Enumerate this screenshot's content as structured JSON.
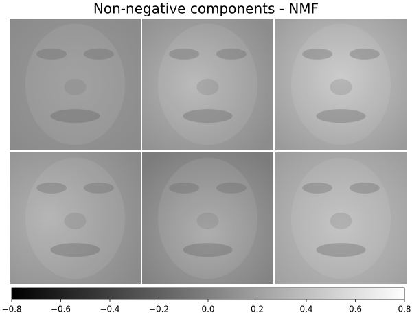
{
  "chart_data": {
    "type": "image-grid",
    "title": "Non-negative components - NMF",
    "colormap": "gray",
    "xlim": [
      -0.8,
      0.8
    ],
    "xticks": [
      {
        "value": -0.8,
        "label": "−0.8"
      },
      {
        "value": -0.6,
        "label": "−0.6"
      },
      {
        "value": -0.4,
        "label": "−0.4"
      },
      {
        "value": -0.2,
        "label": "−0.2"
      },
      {
        "value": 0,
        "label": "0.0"
      },
      0.2,
      0.4,
      0.6,
      0.8
    ]
  }
}
